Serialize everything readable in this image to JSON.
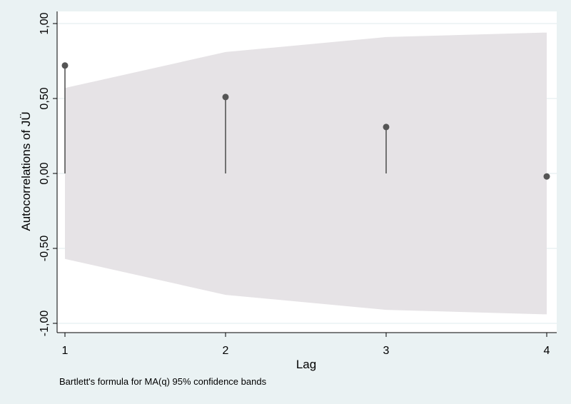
{
  "chart_data": {
    "type": "scatter",
    "subtype": "correlogram-spikes",
    "xlabel": "Lag",
    "ylabel": "Autocorrelations of JÜ",
    "note": "Bartlett's formula for MA(q) 95% confidence bands",
    "x_ticks": [
      "1",
      "2",
      "3",
      "4"
    ],
    "y_ticks": [
      "-1,00",
      "-0,50",
      "0,00",
      "0,50",
      "1,00"
    ],
    "xlim": [
      1,
      4
    ],
    "ylim": [
      -1,
      1
    ],
    "grid": true,
    "lags": [
      1,
      2,
      3,
      4
    ],
    "autocorrelations": [
      0.72,
      0.51,
      0.31,
      -0.02
    ],
    "confidence_band": {
      "upper": [
        0.57,
        0.81,
        0.91,
        0.94
      ],
      "lower": [
        -0.57,
        -0.81,
        -0.91,
        -0.94
      ]
    },
    "colors": {
      "background": "#eaf2f3",
      "plot_area": "#ffffff",
      "band": "#e6e3e6",
      "marker": "#555555",
      "spike": "#555555",
      "grid": "#eaf2f3"
    }
  }
}
